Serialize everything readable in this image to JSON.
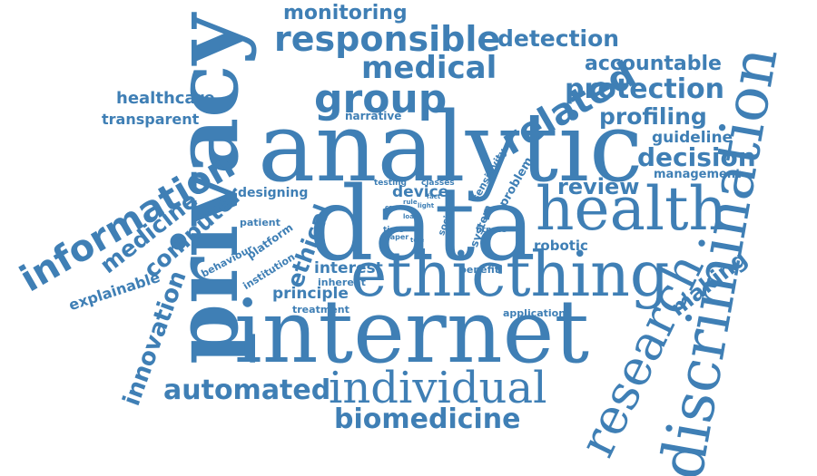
{
  "cloud": {
    "color": "#3f7fb5",
    "background": "#ffffff",
    "words": [
      "monitoring",
      "responsible",
      "detection",
      "medical",
      "accountable",
      "related",
      "group",
      "protection",
      "healthcare",
      "transparent",
      "narrative",
      "profiling",
      "privacy",
      "analytic",
      "guideline",
      "decision",
      "management",
      "information",
      "computer",
      "medicine",
      "designing",
      "device",
      "review",
      "testing",
      "classes",
      "sensitivity",
      "problem",
      "data",
      "health",
      "discrimination",
      "patient",
      "platform",
      "behaviour",
      "institution",
      "time",
      "social",
      "system",
      "fitness",
      "robotic",
      "innovation",
      "explainable",
      "ethical",
      "interest",
      "inherent",
      "benefit",
      "ethicthing",
      "research",
      "making",
      "principle",
      "treatment",
      "application",
      "internet",
      "automated",
      "individual",
      "biomedicine",
      "paper",
      "case",
      "rule",
      "light",
      "tele",
      "loan",
      "fact"
    ]
  }
}
